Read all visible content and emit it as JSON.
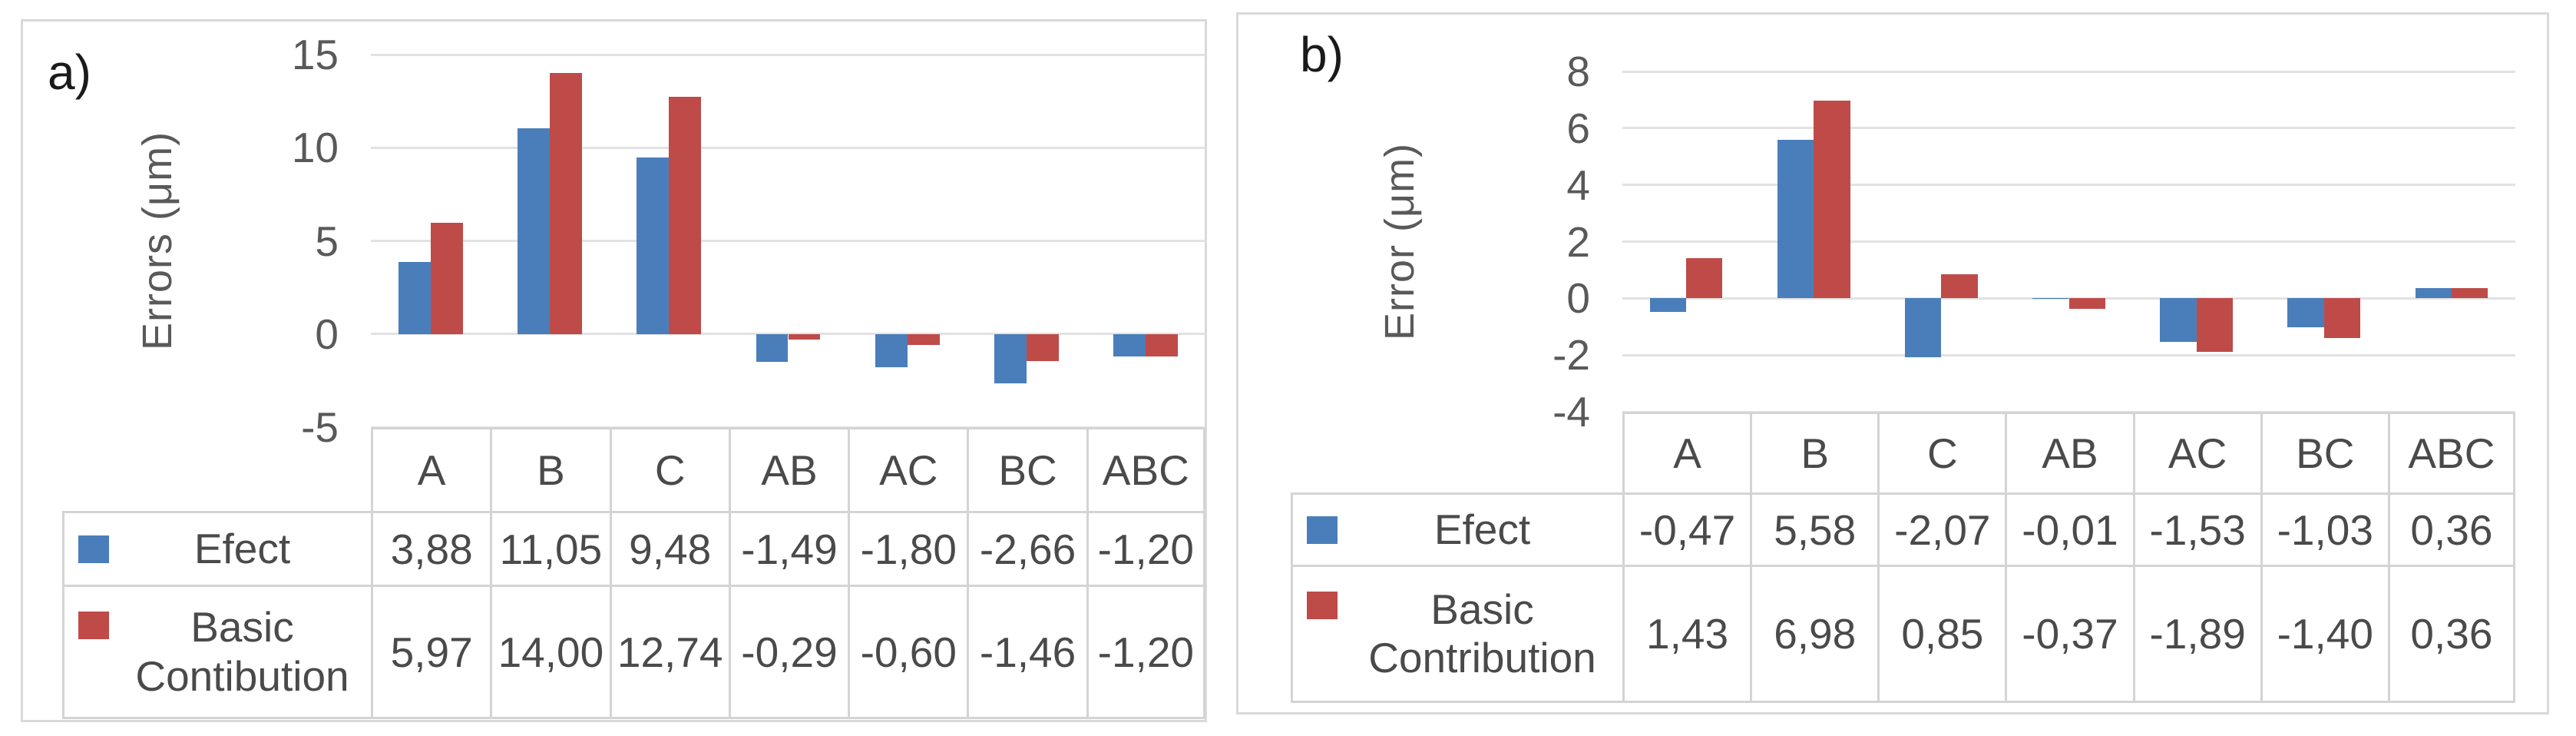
{
  "colors": {
    "series_blue": "#4a7ebb",
    "series_red": "#be4b48",
    "gridline": "#e2e2e2",
    "table_border": "#d4d4d4",
    "panel_border": "#d9d9d9",
    "tick_text": "#595959",
    "table_text": "#4a4a4a",
    "panel_label_text": "#1a1a1a"
  },
  "chart_data": [
    {
      "type": "bar",
      "panel_label": "a)",
      "title": "",
      "xlabel": "",
      "ylabel": "Errors (μm)",
      "ylim": [
        -5,
        15
      ],
      "yticks": [
        15,
        10,
        5,
        0,
        -5
      ],
      "ytick_labels": [
        "15",
        "10",
        "5",
        "0",
        "-5"
      ],
      "grid": true,
      "legend_position": "table-left",
      "categories": [
        "A",
        "B",
        "C",
        "AB",
        "AC",
        "BC",
        "ABC"
      ],
      "series": [
        {
          "name": "Efect",
          "color_key": "series_blue",
          "values": [
            3.88,
            11.05,
            9.48,
            -1.49,
            -1.8,
            -2.66,
            -1.2
          ],
          "labels": [
            "3,88",
            "11,05",
            "9,48",
            "-1,49",
            "-1,80",
            "-2,66",
            "-1,20"
          ]
        },
        {
          "name": "Basic Contibution",
          "color_key": "series_red",
          "values": [
            5.97,
            14.0,
            12.74,
            -0.29,
            -0.6,
            -1.46,
            -1.2
          ],
          "labels": [
            "5,97",
            "14,00",
            "12,74",
            "-0,29",
            "-0,60",
            "-1,46",
            "-1,20"
          ]
        }
      ]
    },
    {
      "type": "bar",
      "panel_label": "b)",
      "title": "",
      "xlabel": "",
      "ylabel": "Error (μm)",
      "ylim": [
        -4,
        8
      ],
      "yticks": [
        8,
        6,
        4,
        2,
        0,
        -2,
        -4
      ],
      "ytick_labels": [
        "8",
        "6",
        "4",
        "2",
        "0",
        "-2",
        "-4"
      ],
      "grid": true,
      "legend_position": "table-left",
      "categories": [
        "A",
        "B",
        "C",
        "AB",
        "AC",
        "BC",
        "ABC"
      ],
      "series": [
        {
          "name": "Efect",
          "color_key": "series_blue",
          "values": [
            -0.47,
            5.58,
            -2.07,
            -0.01,
            -1.53,
            -1.03,
            0.36
          ],
          "labels": [
            "-0,47",
            "5,58",
            "-2,07",
            "-0,01",
            "-1,53",
            "-1,03",
            "0,36"
          ]
        },
        {
          "name": "Basic Contribution",
          "color_key": "series_red",
          "values": [
            1.43,
            6.98,
            0.85,
            -0.37,
            -1.89,
            -1.4,
            0.36
          ],
          "labels": [
            "1,43",
            "6,98",
            "0,85",
            "-0,37",
            "-1,89",
            "-1,40",
            "0,36"
          ]
        }
      ]
    }
  ]
}
